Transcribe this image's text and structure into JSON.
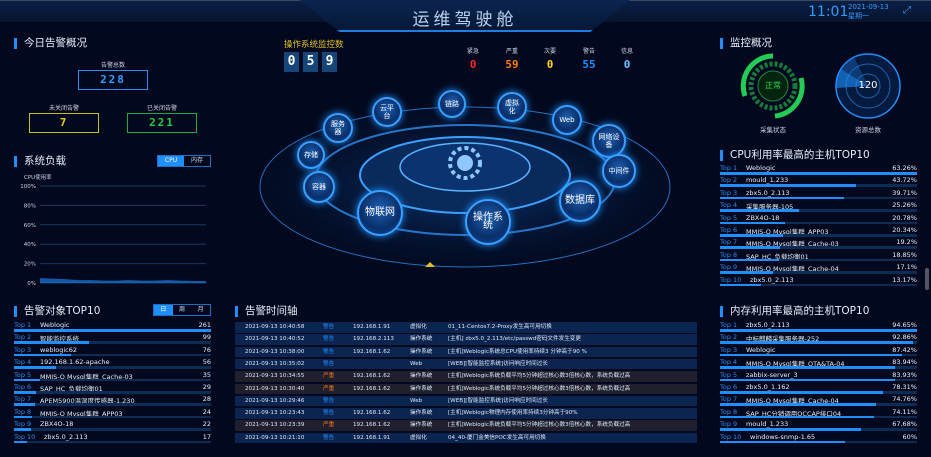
{
  "header": {
    "title": "运维驾驶舱",
    "time": "11:01",
    "date": "2021-09-13",
    "weekday": "星期一",
    "fullscreen_icon": "expand-icon"
  },
  "today_alerts": {
    "title": "今日告警概况",
    "total_label": "告警总数",
    "total": "228",
    "open_label": "未关闭告警",
    "open": "7",
    "closed_label": "已关闭告警",
    "closed": "221",
    "colors": {
      "total": "#2d9cff",
      "open": "#e0d020",
      "closed": "#22cc44"
    }
  },
  "system_load": {
    "title": "系统负载",
    "tabs": [
      "CPU",
      "内存"
    ],
    "active_tab": "CPU",
    "chart_data": {
      "type": "area",
      "ylabel": "CPU使用率",
      "yticks": [
        "100%",
        "80%",
        "60%",
        "40%",
        "20%",
        "0%"
      ],
      "ylim": [
        0,
        100
      ],
      "values": [
        5,
        4.5,
        4,
        3,
        3,
        2.5,
        2.5,
        3,
        2.5,
        2.5,
        3,
        2.5,
        2,
        2
      ],
      "grid": true,
      "color": "#1f8fff"
    }
  },
  "alert_top10": {
    "title": "告警对象TOP10",
    "tabs": [
      "日",
      "周",
      "月"
    ],
    "active_tab": "日",
    "items": [
      {
        "rank": "Top 1",
        "name": "Weblogic",
        "value": 261
      },
      {
        "rank": "Top 2",
        "name": "智能监控系统",
        "value": 99
      },
      {
        "rank": "Top 3",
        "name": "weblogic62",
        "value": 76
      },
      {
        "rank": "Top 4",
        "name": "192.168.1.62-apache",
        "value": 56
      },
      {
        "rank": "Top 5",
        "name": "MMIS-O Mysql集群_Cache-03",
        "value": 35
      },
      {
        "rank": "Top 6",
        "name": "SAP_HC_负载均衡01",
        "value": 29
      },
      {
        "rank": "Top 7",
        "name": "APEM5900温湿度传感器-1.230",
        "value": 28
      },
      {
        "rank": "Top 8",
        "name": "MMIS-O Mysql集群_APP03",
        "value": 24
      },
      {
        "rank": "Top 9",
        "name": "ZBX4O-18",
        "value": 22
      },
      {
        "rank": "Top 10",
        "name": "zbx5.0_2.113",
        "value": 17
      }
    ]
  },
  "os_monitor": {
    "title": "操作系统监控数",
    "digits": [
      "0",
      "5",
      "9"
    ],
    "severity": [
      {
        "label": "紧急",
        "value": "0",
        "color": "#ff2a2a"
      },
      {
        "label": "严重",
        "value": "59",
        "color": "#ff7a1a"
      },
      {
        "label": "次要",
        "value": "0",
        "color": "#ffd21a"
      },
      {
        "label": "警告",
        "value": "55",
        "color": "#1f8fff"
      },
      {
        "label": "信息",
        "value": "0",
        "color": "#6cc4ff"
      }
    ]
  },
  "hub": {
    "center_icon": "gear-icon",
    "nodes": [
      "服务器",
      "云平台",
      "链路",
      "虚拟化",
      "Web",
      "网络设备",
      "中间件",
      "数据库",
      "操作系统",
      "物联网",
      "容器",
      "存储"
    ]
  },
  "timeline": {
    "title": "告警时间轴",
    "rows": [
      {
        "time": "2021-09-13 10:40:58",
        "level": "警告",
        "ip": "192.168.1.91",
        "type": "虚拟化",
        "msg": "01_11-Centos7.2-Proxy发生高可用切换"
      },
      {
        "time": "2021-09-13 10:40:52",
        "level": "警告",
        "ip": "192.168.2.113",
        "type": "操作系统",
        "msg": "[主机] zbx5.0_2.113/etc/passwd密码文件发生变更"
      },
      {
        "time": "2021-09-13 10:38:00",
        "level": "警告",
        "ip": "192.168.1.62",
        "type": "操作系统",
        "msg": "[主机]Weblogic系统总CPU使用率持续3 分钟高于90 %"
      },
      {
        "time": "2021-09-13 10:35:02",
        "level": "警告",
        "ip": "",
        "type": "Web",
        "msg": "[WEB][智能监控系统]访问响应时间过长"
      },
      {
        "time": "2021-09-13 10:34:55",
        "level": "严重",
        "ip": "192.168.1.62",
        "type": "操作系统",
        "msg": "[主机]Weblogic系统负载平均5分钟超过核心数3倍核心数，系统负载过高"
      },
      {
        "time": "2021-09-13 10:30:40",
        "level": "严重",
        "ip": "192.168.1.62",
        "type": "操作系统",
        "msg": "[主机]Weblogic系统负载平均5分钟超过核心数3倍核心数，系统负载过高"
      },
      {
        "time": "2021-09-13 10:29:46",
        "level": "警告",
        "ip": "",
        "type": "Web",
        "msg": "[WEB][智能监控系统]访问响应时间过长"
      },
      {
        "time": "2021-09-13 10:23:43",
        "level": "警告",
        "ip": "192.168.1.62",
        "type": "操作系统",
        "msg": "[主机]Weblogic物理内存使用率持续3分钟高于90%"
      },
      {
        "time": "2021-09-13 10:23:39",
        "level": "严重",
        "ip": "192.168.1.62",
        "type": "操作系统",
        "msg": "[主机]Weblogic系统负载平均5分钟超过核心数3倍核心数，系统负载过高"
      },
      {
        "time": "2021-09-13 10:21:10",
        "level": "警告",
        "ip": "192.168.1.91",
        "type": "虚拟化",
        "msg": "04_40-厦门金美信POC发生高可用切换"
      }
    ],
    "level_colors": {
      "警告": "#1f8fff",
      "严重": "#ff7a1a"
    }
  },
  "monitor_overview": {
    "title": "监控概况",
    "status": "正常",
    "status_label": "采集状态",
    "resources": "120",
    "resources_label": "资源总数"
  },
  "cpu_top10": {
    "title": "CPU利用率最高的主机TOP10",
    "items": [
      {
        "rank": "Top 1",
        "name": "Weblogic",
        "value": "63.26%"
      },
      {
        "rank": "Top 2",
        "name": "mould_1.233",
        "value": "43.72%"
      },
      {
        "rank": "Top 3",
        "name": "zbx5.0_2.113",
        "value": "39.71%"
      },
      {
        "rank": "Top 4",
        "name": "采集服务器-105",
        "value": "25.26%"
      },
      {
        "rank": "Top 5",
        "name": "ZBX4O-18",
        "value": "20.78%"
      },
      {
        "rank": "Top 6",
        "name": "MMIS-O Mysql集群_APP03",
        "value": "20.34%"
      },
      {
        "rank": "Top 7",
        "name": "MMIS-O Mysql集群_Cache-03",
        "value": "19.2%"
      },
      {
        "rank": "Top 8",
        "name": "SAP_HC_负载均衡01",
        "value": "18.85%"
      },
      {
        "rank": "Top 9",
        "name": "MMIS-O Mysql集群_Cache-04",
        "value": "17.1%"
      },
      {
        "rank": "Top 10",
        "name": "zbx5.0_2.113",
        "value": "13.17%"
      }
    ]
  },
  "mem_top10": {
    "title": "内存利用率最高的主机TOP10",
    "items": [
      {
        "rank": "Top 1",
        "name": "zbx5.0_2.113",
        "value": "94.65%"
      },
      {
        "rank": "Top 2",
        "name": "中标麒麟采集服务器-252",
        "value": "92.86%"
      },
      {
        "rank": "Top 3",
        "name": "Weblogic",
        "value": "87.42%"
      },
      {
        "rank": "Top 4",
        "name": "MMIS-O Mysql集群_OTA&TA-04",
        "value": "83.94%"
      },
      {
        "rank": "Top 5",
        "name": "zabbix-server_3",
        "value": "83.93%"
      },
      {
        "rank": "Top 6",
        "name": "zbx5.0_1.162",
        "value": "78.31%"
      },
      {
        "rank": "Top 7",
        "name": "MMIS-O Mysql集群_Cache-04",
        "value": "74.76%"
      },
      {
        "rank": "Top 8",
        "name": "SAP_HC分销调用OCCAP接口04",
        "value": "74.11%"
      },
      {
        "rank": "Top 9",
        "name": "mould_1.233",
        "value": "67.68%"
      },
      {
        "rank": "Top 10",
        "name": "windows-snmp-1.65",
        "value": "60%"
      }
    ]
  }
}
